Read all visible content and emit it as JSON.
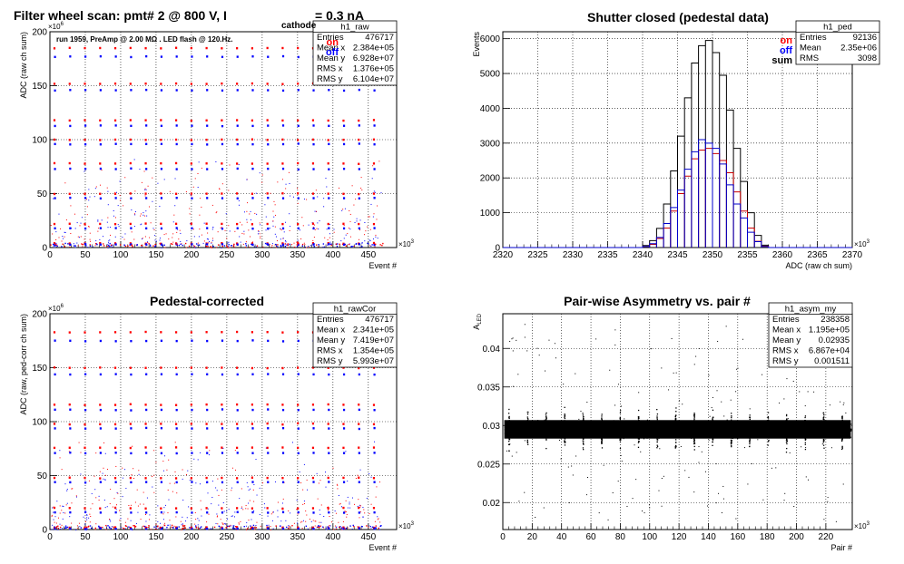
{
  "chart_data": [
    {
      "id": "raw",
      "type": "scatter",
      "title": "Filter wheel scan: pmt#   2 @   800 V, I",
      "title_sub": "cathode",
      "title_tail": " = 0.3 nA",
      "subtitle": "run 1959, PreAmp @ 2.00 MΩ . LED flash @  120.Hz.",
      "xlabel": "Event #",
      "ylabel": "ADC (raw ch sum)",
      "x_multiplier": "×10",
      "x_multiplier_exp": "3",
      "y_multiplier": "×10",
      "y_multiplier_exp": "6",
      "xlim": [
        0,
        490
      ],
      "ylim": [
        0,
        200
      ],
      "xticks": [
        "0",
        "50",
        "100",
        "150",
        "200",
        "250",
        "300",
        "350",
        "400",
        "450"
      ],
      "yticks": [
        "0",
        "50",
        "100",
        "150",
        "200"
      ],
      "grid": true,
      "legend": [
        "on",
        "off"
      ],
      "levels_on": [
        4,
        22,
        50,
        78,
        100,
        118,
        152,
        185
      ],
      "levels_off": [
        3,
        18,
        46,
        73,
        96,
        113,
        146,
        177
      ],
      "stats": {
        "name": "h1_raw",
        "rows": [
          [
            "Entries",
            "476717"
          ],
          [
            "Mean x",
            "2.384e+05"
          ],
          [
            "Mean y",
            "6.928e+07"
          ],
          [
            "RMS x",
            "1.376e+05"
          ],
          [
            "RMS y",
            "6.104e+07"
          ]
        ]
      }
    },
    {
      "id": "ped",
      "type": "line",
      "title": "Shutter closed (pedestal data)",
      "xlabel": "ADC (raw ch sum)",
      "ylabel": "Events",
      "x_multiplier": "×10",
      "x_multiplier_exp": "3",
      "xlim": [
        2320,
        2370
      ],
      "ylim": [
        0,
        6200
      ],
      "xticks": [
        "2320",
        "2325",
        "2330",
        "2335",
        "2340",
        "2345",
        "2350",
        "2355",
        "2360",
        "2365",
        "2370"
      ],
      "yticks": [
        "0",
        "1000",
        "2000",
        "3000",
        "4000",
        "5000",
        "6000"
      ],
      "grid": true,
      "legend": [
        "on",
        "off",
        "sum"
      ],
      "series": [
        {
          "name": "sum",
          "color": "#000000",
          "x": [
            2340.5,
            2341.5,
            2342.5,
            2343.5,
            2344.5,
            2345.5,
            2346.5,
            2347.5,
            2348.5,
            2349.5,
            2350.5,
            2351.5,
            2352.5,
            2353.5,
            2354.5,
            2355.5,
            2356.5,
            2357.5
          ],
          "values": [
            60,
            200,
            550,
            1250,
            2200,
            3200,
            4300,
            5300,
            5800,
            5950,
            5600,
            4950,
            3950,
            2850,
            1900,
            1000,
            350,
            70
          ]
        },
        {
          "name": "on",
          "color": "#cc0000",
          "x": [
            2340.5,
            2341.5,
            2342.5,
            2343.5,
            2344.5,
            2345.5,
            2346.5,
            2347.5,
            2348.5,
            2349.5,
            2350.5,
            2351.5,
            2352.5,
            2353.5,
            2354.5,
            2355.5,
            2356.5,
            2357.5
          ],
          "values": [
            30,
            90,
            260,
            560,
            1050,
            1550,
            2050,
            2550,
            2800,
            2850,
            2700,
            2500,
            2150,
            1600,
            1050,
            560,
            180,
            40
          ]
        },
        {
          "name": "off",
          "color": "#0000cc",
          "x": [
            2340.5,
            2341.5,
            2342.5,
            2343.5,
            2344.5,
            2345.5,
            2346.5,
            2347.5,
            2348.5,
            2349.5,
            2350.5,
            2351.5,
            2352.5,
            2353.5,
            2354.5,
            2355.5,
            2356.5,
            2357.5
          ],
          "values": [
            30,
            110,
            290,
            690,
            1150,
            1650,
            2250,
            2750,
            3100,
            3000,
            2850,
            2400,
            1800,
            1250,
            850,
            440,
            170,
            30
          ]
        }
      ],
      "stats": {
        "name": "h1_ped",
        "rows": [
          [
            "Entries",
            "92136"
          ],
          [
            "Mean",
            "2.35e+06"
          ],
          [
            "RMS",
            "3098"
          ]
        ]
      }
    },
    {
      "id": "cor",
      "type": "scatter",
      "title": "Pedestal-corrected",
      "xlabel": "Event #",
      "ylabel": "ADC (raw, ped-corr ch sum)",
      "x_multiplier": "×10",
      "x_multiplier_exp": "3",
      "y_multiplier": "×10",
      "y_multiplier_exp": "6",
      "xlim": [
        0,
        490
      ],
      "ylim": [
        0,
        200
      ],
      "xticks": [
        "0",
        "50",
        "100",
        "150",
        "200",
        "250",
        "300",
        "350",
        "400",
        "450"
      ],
      "yticks": [
        "0",
        "50",
        "100",
        "150",
        "200"
      ],
      "grid": true,
      "legend": [
        "on",
        "off"
      ],
      "levels_on": [
        2,
        20,
        48,
        76,
        98,
        116,
        150,
        183
      ],
      "levels_off": [
        1,
        16,
        44,
        71,
        94,
        111,
        144,
        175
      ],
      "stats": {
        "name": "h1_rawCor",
        "rows": [
          [
            "Entries",
            "476717"
          ],
          [
            "Mean x",
            "2.341e+05"
          ],
          [
            "Mean y",
            "7.419e+07"
          ],
          [
            "RMS x",
            "1.354e+05"
          ],
          [
            "RMS y",
            "5.993e+07"
          ]
        ]
      }
    },
    {
      "id": "asym",
      "type": "scatter",
      "title": "Pair-wise Asymmetry vs. pair #",
      "xlabel": "Pair #",
      "ylabel": "A",
      "ylabel_sub": "LED",
      "x_multiplier": "×10",
      "x_multiplier_exp": "3",
      "xlim": [
        0,
        238
      ],
      "ylim": [
        0.0165,
        0.0445
      ],
      "xticks": [
        "0",
        "20",
        "40",
        "60",
        "80",
        "100",
        "120",
        "140",
        "160",
        "180",
        "200",
        "220"
      ],
      "yticks": [
        "0.02",
        "0.025",
        "0.03",
        "0.035",
        "0.04"
      ],
      "grid": true,
      "band_center": 0.0295,
      "stats": {
        "name": "h1_asym_my",
        "rows": [
          [
            "Entries",
            "238358"
          ],
          [
            "Mean x",
            "1.195e+05"
          ],
          [
            "Mean y",
            "0.02935"
          ],
          [
            "RMS x",
            "6.867e+04"
          ],
          [
            "RMS y",
            "0.001511"
          ]
        ]
      }
    }
  ]
}
